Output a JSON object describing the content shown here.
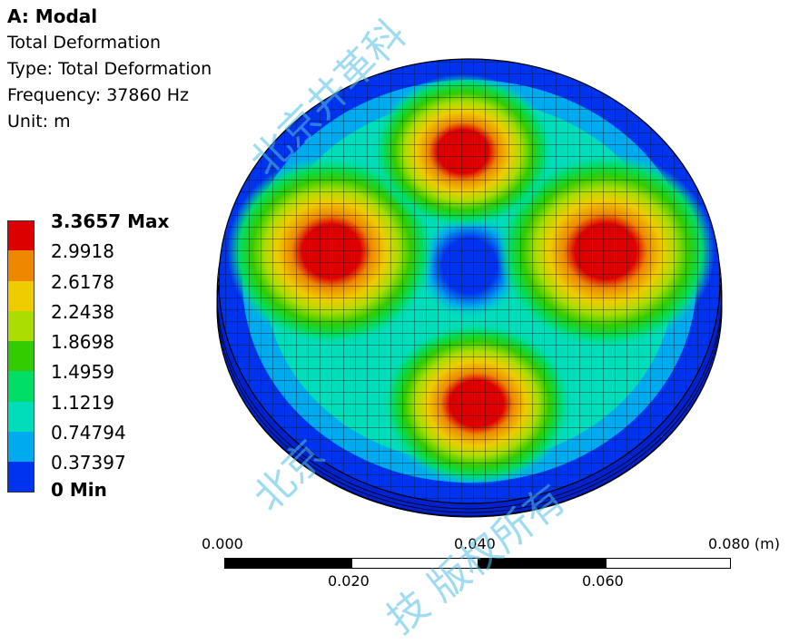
{
  "header": {
    "title": "A: Modal",
    "result": "Total Deformation",
    "type": "Type: Total Deformation",
    "frequency": "Frequency: 37860 Hz",
    "unit": "Unit: m"
  },
  "legend": {
    "items": [
      {
        "label": "3.3657 Max",
        "color": "#dd0000",
        "bold": true
      },
      {
        "label": "2.9918",
        "color": "#ee8800",
        "bold": false
      },
      {
        "label": "2.6178",
        "color": "#eecc00",
        "bold": false
      },
      {
        "label": "2.2438",
        "color": "#aadd00",
        "bold": false
      },
      {
        "label": "1.8698",
        "color": "#33cc00",
        "bold": false
      },
      {
        "label": "1.4959",
        "color": "#00dd66",
        "bold": false
      },
      {
        "label": "1.1219",
        "color": "#00ddbb",
        "bold": false
      },
      {
        "label": "0.74794",
        "color": "#00aaee",
        "bold": false
      },
      {
        "label": "0.37397",
        "color": "#0033ee",
        "bold": false
      },
      {
        "label": "0 Min",
        "color": "",
        "bold": true
      }
    ]
  },
  "scale": {
    "top_labels": [
      "0.000",
      "0.040",
      "0.080 (m)"
    ],
    "bottom_labels": [
      "0.020",
      "0.060"
    ]
  },
  "watermark": {
    "text_a": "北京井革科",
    "text_b": "北京",
    "text_c": "技 版权所有"
  }
}
